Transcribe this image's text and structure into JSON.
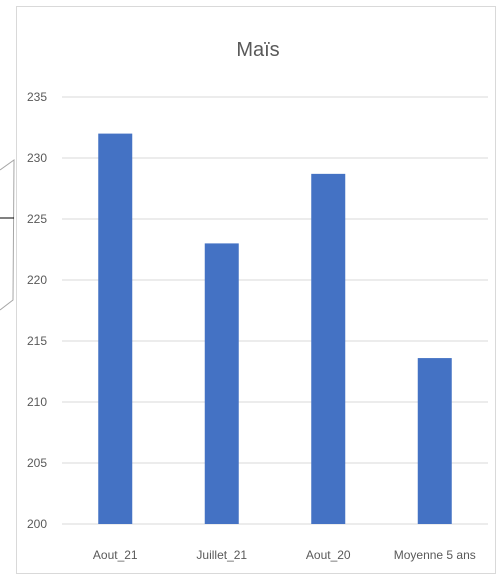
{
  "chart_data": {
    "type": "bar",
    "title": "Maïs",
    "categories": [
      "Aout_21",
      "Juillet_21",
      "Aout_20",
      "Moyenne 5 ans"
    ],
    "values": [
      232.0,
      223.0,
      228.7,
      213.6
    ],
    "ylim": [
      200,
      235
    ],
    "yticks": [
      200,
      205,
      210,
      215,
      220,
      225,
      230,
      235
    ],
    "grid": true,
    "bar_color": "#4472C4",
    "xlabel": "",
    "ylabel": ""
  }
}
